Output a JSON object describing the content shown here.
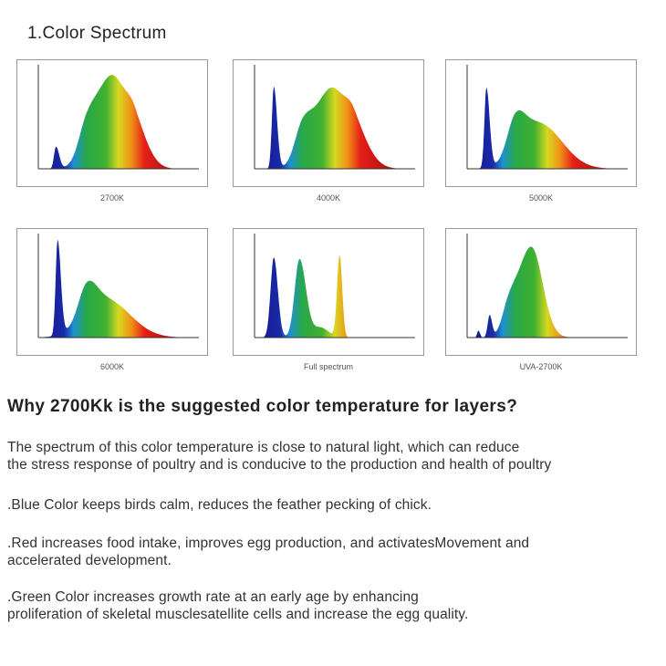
{
  "title": "1.Color Spectrum",
  "panels": [
    {
      "caption": "2700K"
    },
    {
      "caption": "4000K"
    },
    {
      "caption": "5000K"
    },
    {
      "caption": "6000K"
    },
    {
      "caption": "Full spectrum"
    },
    {
      "caption": "UVA-2700K"
    }
  ],
  "heading": "Why 2700Kk is the suggested color temperature for layers?",
  "paragraph": [
    "The spectrum of this color temperature is close to natural light, which can reduce",
    "the stress response of poultry and is conducive to the production and health of poultry"
  ],
  "bullets": [
    [
      ".Blue Color keeps birds calm, reduces the feather pecking of chick."
    ],
    [
      ".Red increases food intake, improves egg production, and activatesMovement and",
      "accelerated development."
    ],
    [
      ".Green Color increases growth rate at an early age by enhancing",
      "proliferation of skeletal musclesatellite cells and increase the egg quality."
    ]
  ]
}
